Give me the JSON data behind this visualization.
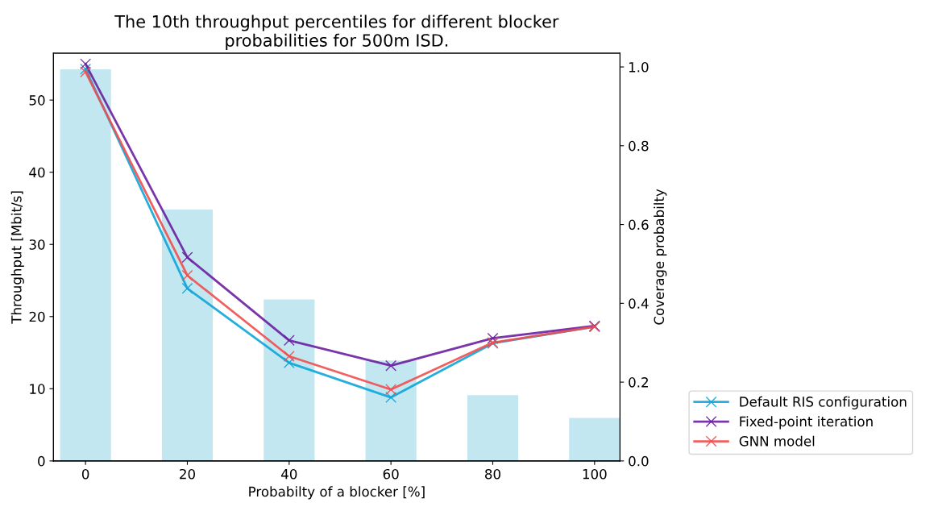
{
  "chart_data": {
    "type": "line",
    "title": "The 10th throughput percentiles for different blocker\nprobabilities for 500m ISD.",
    "xlabel": "Probabilty of a blocker [%]",
    "ylabel": "Throughput [Mbit/s]",
    "y2label": "Coverage probabilty",
    "x": [
      0,
      20,
      40,
      60,
      80,
      100
    ],
    "series": [
      {
        "type": "bar",
        "axis": "y2",
        "color": "#c3e7f1",
        "values": [
          0.994,
          0.638,
          0.41,
          0.255,
          0.167,
          0.109
        ]
      },
      {
        "name": "Default RIS configuration",
        "color": "#0ea5d8",
        "values": [
          54.3,
          23.9,
          13.6,
          8.8,
          16.3,
          18.6
        ]
      },
      {
        "name": "Fixed-point iteration",
        "color": "#6a1fa0",
        "values": [
          55.0,
          28.2,
          16.7,
          13.2,
          17.0,
          18.7
        ]
      },
      {
        "name": "GNN model",
        "color": "#f04e4e",
        "values": [
          53.9,
          25.7,
          14.5,
          9.9,
          16.4,
          18.6
        ]
      }
    ],
    "xlim": [
      -6.3,
      105
    ],
    "xticks": [
      0,
      20,
      40,
      60,
      80,
      100
    ],
    "ylim": [
      0,
      56.5
    ],
    "yticks": [
      0,
      10,
      20,
      30,
      40,
      50
    ],
    "y2lim": [
      0,
      1.035
    ],
    "y2ticks": [
      {
        "value": 0,
        "label": "0.0"
      },
      {
        "value": 0.2,
        "label": "0.2"
      },
      {
        "value": 0.4,
        "label": "0.4"
      },
      {
        "value": 0.6,
        "label": "0.6"
      },
      {
        "value": 0.8,
        "label": "0.8"
      },
      {
        "value": 1.0,
        "label": "1.0"
      }
    ],
    "marker": "cross",
    "line_style": "solid",
    "legend": "bottom right",
    "grid": false
  }
}
